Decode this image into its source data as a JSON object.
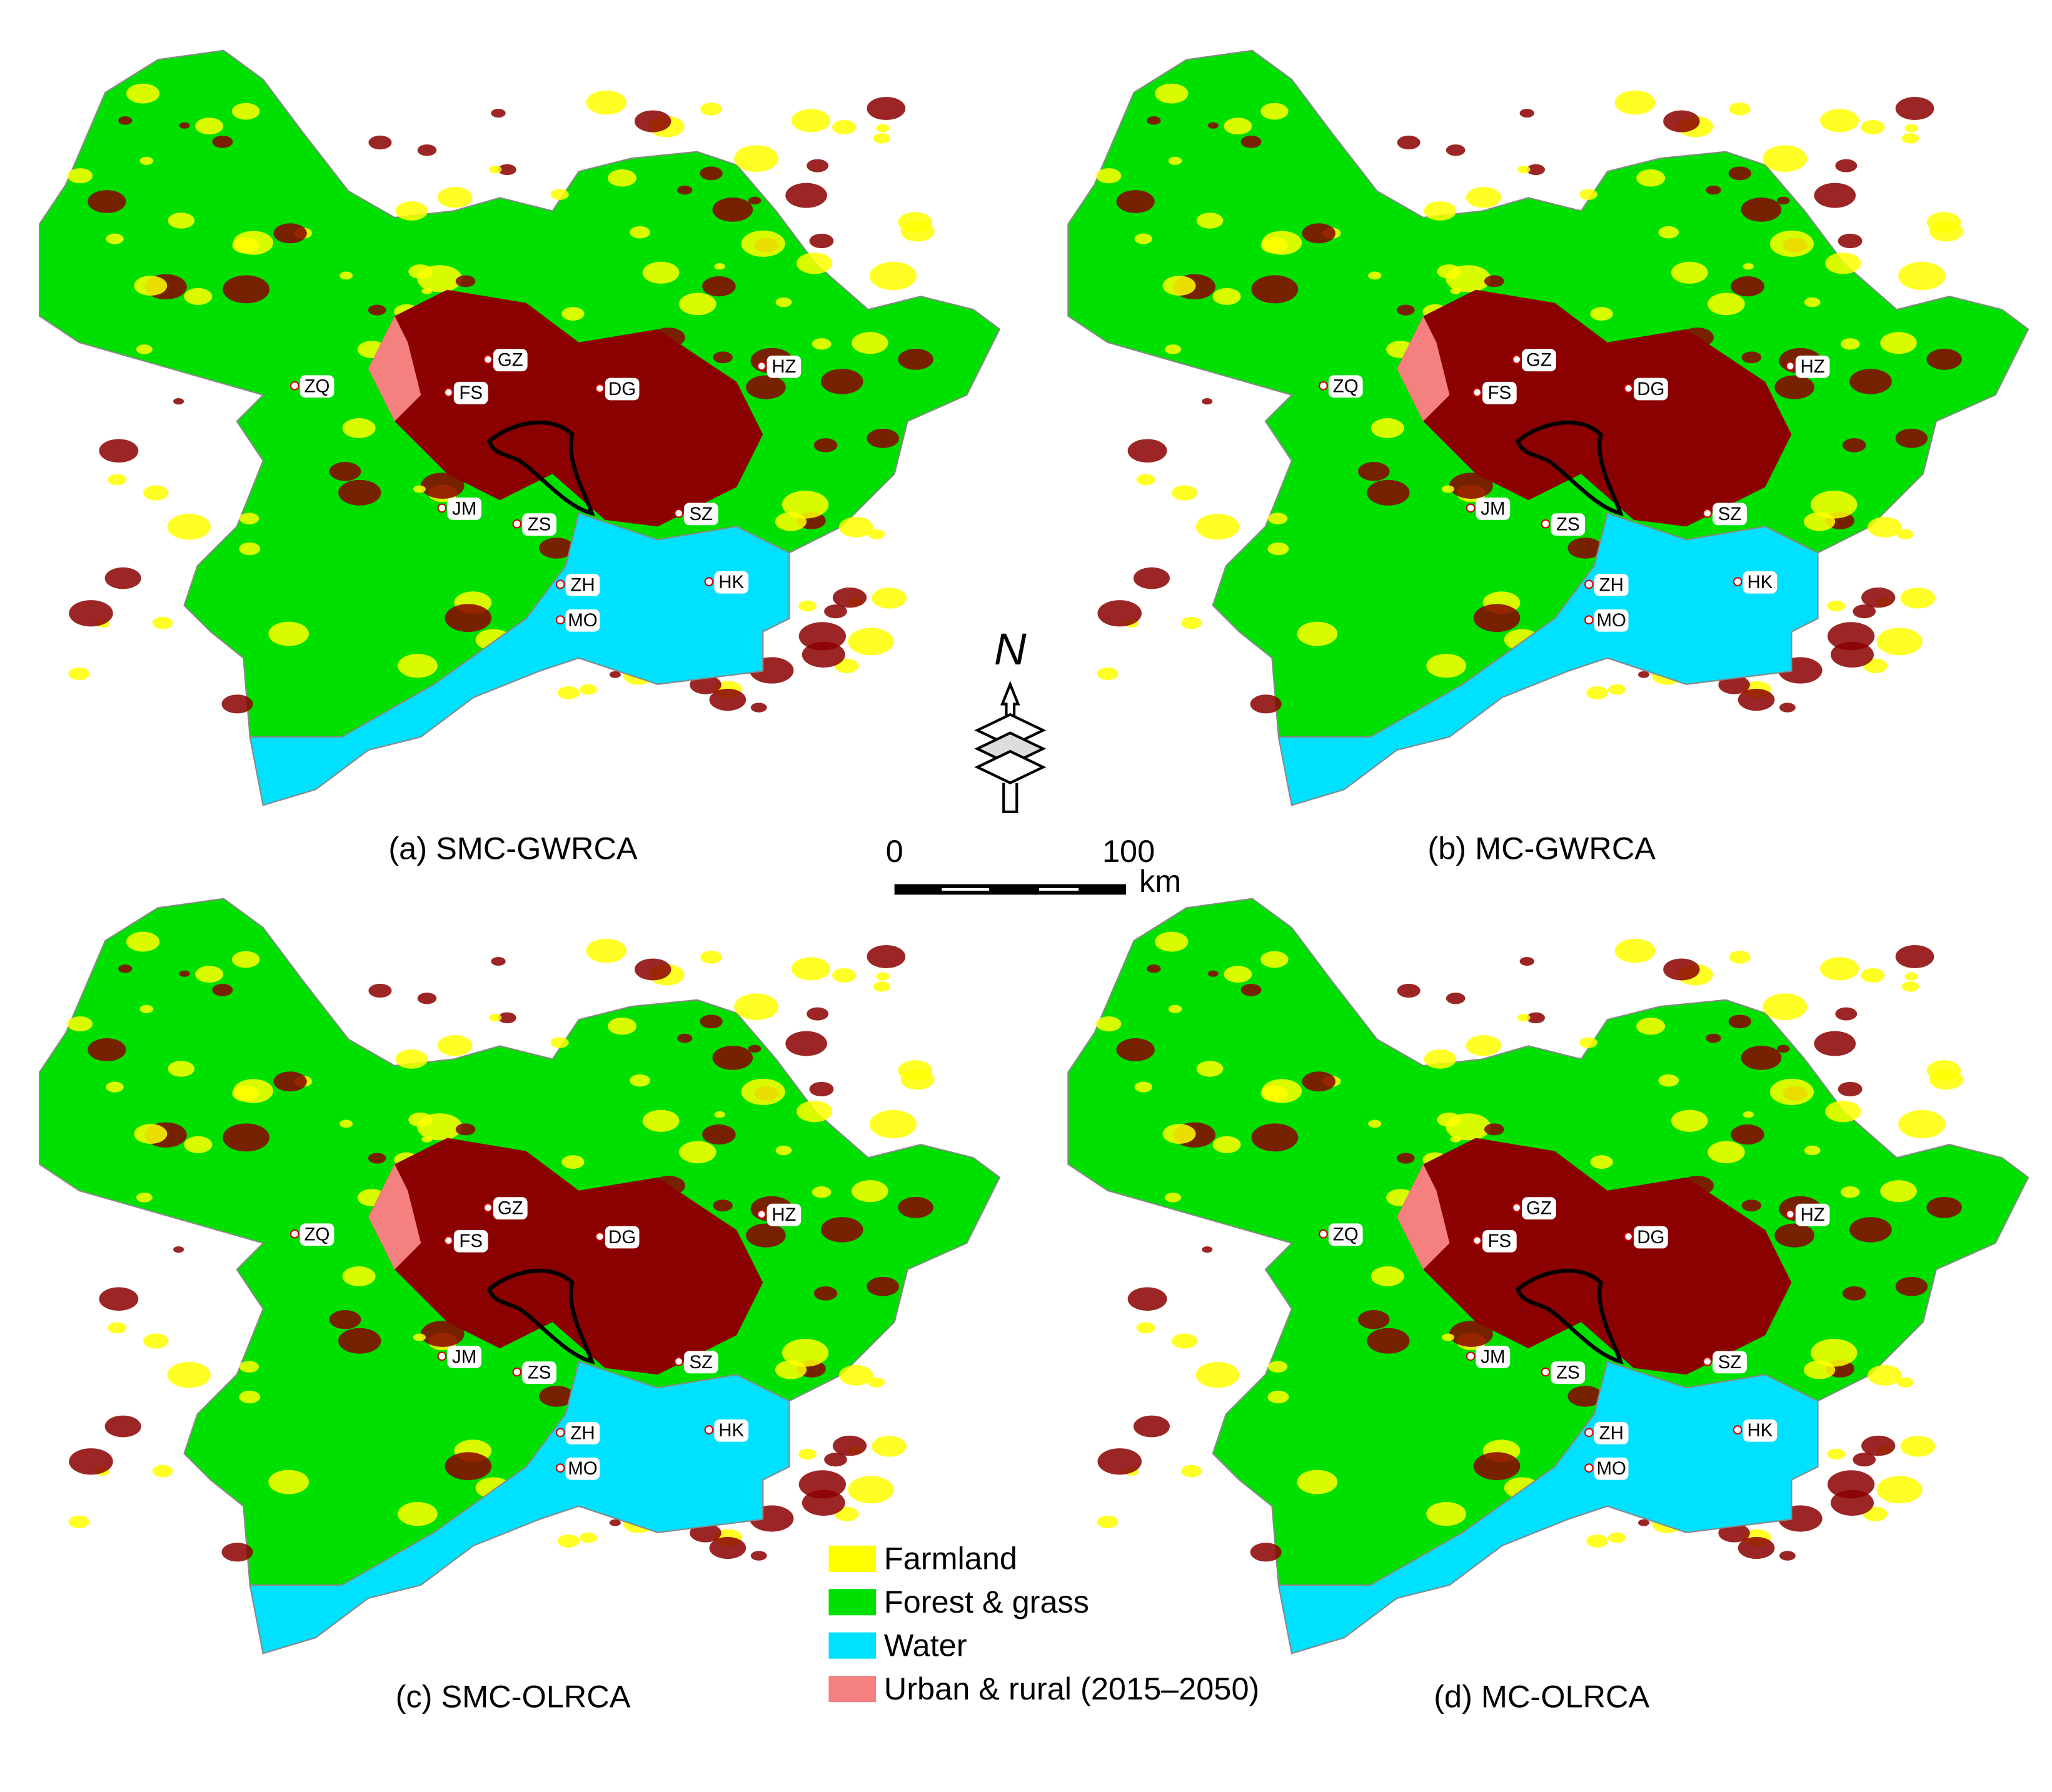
{
  "panels": [
    {
      "caption": "(a) SMC-GWRCA"
    },
    {
      "caption": "(b) MC-GWRCA"
    },
    {
      "caption": "(c) SMC-OLRCA"
    },
    {
      "caption": "(d) MC-OLRCA"
    }
  ],
  "city_labels": [
    "GZ",
    "FS",
    "DG",
    "HZ",
    "ZQ",
    "JM",
    "ZS",
    "SZ",
    "HK",
    "ZH",
    "MO"
  ],
  "north_arrow": "N",
  "scale_bar": {
    "start": "0",
    "end": "100",
    "unit": "km"
  },
  "legend": [
    {
      "name": "Farmland",
      "color": "#ffff00"
    },
    {
      "name": "Forest & grass",
      "color": "#00e000"
    },
    {
      "name": "Water",
      "color": "#00e0ff"
    },
    {
      "name": "Urban & rural (2015–2050)",
      "color": "#f48080"
    }
  ]
}
